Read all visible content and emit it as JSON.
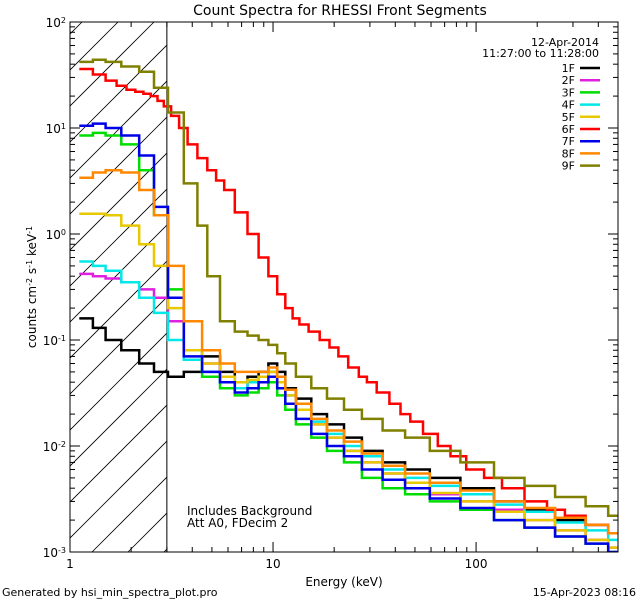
{
  "chart_data": {
    "type": "line",
    "title": "Count Spectra for RHESSI Front Segments",
    "xlabel": "Energy (keV)",
    "ylabel_main": "counts cm",
    "ylabel_sup1": "-2",
    "ylabel_mid": " s",
    "ylabel_sup2": "-1",
    "ylabel_end": " keV",
    "ylabel_sup3": "-1",
    "xscale": "log",
    "yscale": "log",
    "xlim": [
      1,
      500
    ],
    "ylim": [
      0.001,
      100
    ],
    "x_major_ticks": [
      1,
      10,
      100
    ],
    "x_tick_labels": [
      "1",
      "10",
      "100"
    ],
    "y_major_ticks": [
      0.001,
      0.01,
      0.1,
      1,
      10,
      100
    ],
    "y_tick_labels": [
      {
        "base": "10",
        "exp": "-3"
      },
      {
        "base": "10",
        "exp": "-2"
      },
      {
        "base": "10",
        "exp": "-1"
      },
      {
        "base": "10",
        "exp": "0"
      },
      {
        "base": "10",
        "exp": "1"
      },
      {
        "base": "10",
        "exp": "2"
      }
    ],
    "shaded_region": {
      "x_from": 1,
      "x_to": 3,
      "style": "diagonal-hatch"
    },
    "date": "12-Apr-2014",
    "time_range": "11:27:00 to 11:28:00",
    "annotations": [
      "Includes Background",
      "Att A0, FDecim 2"
    ],
    "legend_position": "top-right",
    "footer_left": "Generated by hsi_min_spectra_plot.pro",
    "footer_right": "15-Apr-2023 08:16",
    "series": [
      {
        "name": "1F",
        "color": "#000000",
        "x": [
          1.2,
          1.4,
          1.6,
          2.0,
          2.4,
          2.8,
          3.3,
          4.0,
          5,
          6,
          7,
          8,
          9,
          10,
          11,
          12,
          14,
          17,
          20,
          25,
          30,
          40,
          50,
          70,
          100,
          150,
          200,
          300,
          400,
          500
        ],
        "y": [
          0.16,
          0.13,
          0.1,
          0.08,
          0.06,
          0.05,
          0.045,
          0.05,
          0.07,
          0.05,
          0.04,
          0.045,
          0.05,
          0.06,
          0.05,
          0.035,
          0.028,
          0.02,
          0.016,
          0.012,
          0.009,
          0.007,
          0.006,
          0.005,
          0.004,
          0.003,
          0.0025,
          0.002,
          0.0018,
          0.0015
        ]
      },
      {
        "name": "2F",
        "color": "#e020e0",
        "x": [
          1.2,
          1.4,
          1.6,
          2.0,
          2.4,
          2.8,
          3.3,
          4.0,
          5,
          6,
          7,
          8,
          9,
          10,
          11,
          12,
          14,
          17,
          20,
          25,
          30,
          40,
          50,
          70,
          100,
          150,
          200,
          300,
          400,
          500
        ],
        "y": [
          0.42,
          0.4,
          0.38,
          0.35,
          0.3,
          0.25,
          0.15,
          0.08,
          0.06,
          0.045,
          0.035,
          0.04,
          0.045,
          0.05,
          0.04,
          0.03,
          0.022,
          0.016,
          0.012,
          0.009,
          0.007,
          0.0055,
          0.0045,
          0.0035,
          0.003,
          0.0025,
          0.002,
          0.0016,
          0.0013,
          0.0011
        ]
      },
      {
        "name": "3F",
        "color": "#00dd00",
        "x": [
          1.2,
          1.4,
          1.6,
          2.0,
          2.4,
          2.8,
          3.3,
          4.0,
          5,
          6,
          7,
          8,
          9,
          10,
          11,
          12,
          14,
          17,
          20,
          25,
          30,
          40,
          50,
          70,
          100,
          150,
          200,
          300,
          400,
          500
        ],
        "y": [
          8.5,
          9,
          8.5,
          7,
          4,
          1.5,
          0.3,
          0.08,
          0.045,
          0.035,
          0.03,
          0.032,
          0.035,
          0.04,
          0.03,
          0.022,
          0.016,
          0.012,
          0.009,
          0.007,
          0.005,
          0.004,
          0.0035,
          0.003,
          0.0025,
          0.002,
          0.0017,
          0.0014,
          0.0012,
          0.001
        ]
      },
      {
        "name": "4F",
        "color": "#00e8e8",
        "x": [
          1.2,
          1.4,
          1.6,
          2.0,
          2.4,
          2.8,
          3.3,
          4.0,
          5,
          6,
          7,
          8,
          9,
          10,
          11,
          12,
          14,
          17,
          20,
          25,
          30,
          40,
          50,
          70,
          100,
          150,
          200,
          300,
          400,
          500
        ],
        "y": [
          0.55,
          0.5,
          0.45,
          0.35,
          0.25,
          0.18,
          0.1,
          0.065,
          0.05,
          0.04,
          0.035,
          0.04,
          0.045,
          0.05,
          0.04,
          0.03,
          0.022,
          0.017,
          0.013,
          0.01,
          0.008,
          0.006,
          0.005,
          0.0042,
          0.0035,
          0.0028,
          0.0024,
          0.0019,
          0.0016,
          0.0013
        ]
      },
      {
        "name": "5F",
        "color": "#e8c800",
        "x": [
          1.2,
          1.4,
          1.6,
          2.0,
          2.4,
          2.8,
          3.3,
          4.0,
          5,
          6,
          7,
          8,
          9,
          10,
          11,
          12,
          14,
          17,
          20,
          25,
          30,
          40,
          50,
          70,
          100,
          150,
          200,
          300,
          400,
          500
        ],
        "y": [
          1.55,
          1.55,
          1.5,
          1.2,
          0.8,
          0.5,
          0.2,
          0.08,
          0.06,
          0.045,
          0.04,
          0.042,
          0.045,
          0.05,
          0.04,
          0.03,
          0.022,
          0.016,
          0.012,
          0.009,
          0.007,
          0.0055,
          0.0045,
          0.0036,
          0.003,
          0.0024,
          0.002,
          0.0016,
          0.0013,
          0.0011
        ]
      },
      {
        "name": "6F",
        "color": "#ff0000",
        "x": [
          1.2,
          1.4,
          1.6,
          1.8,
          2.0,
          2.2,
          2.4,
          2.6,
          2.8,
          3.0,
          3.3,
          3.6,
          4.0,
          4.5,
          5.0,
          5.5,
          6.0,
          7.0,
          8.0,
          9.0,
          10,
          11,
          12,
          13,
          14,
          16,
          18,
          20,
          22,
          25,
          28,
          30,
          35,
          40,
          45,
          50,
          60,
          70,
          80,
          100,
          120,
          150,
          200,
          250,
          300,
          400,
          500
        ],
        "y": [
          36,
          32,
          28,
          25,
          23,
          22,
          21,
          20,
          18,
          16,
          13,
          10,
          7,
          5.2,
          4,
          3.2,
          2.6,
          1.6,
          1.0,
          0.6,
          0.4,
          0.27,
          0.2,
          0.16,
          0.14,
          0.12,
          0.1,
          0.085,
          0.07,
          0.055,
          0.045,
          0.04,
          0.032,
          0.025,
          0.02,
          0.017,
          0.013,
          0.01,
          0.008,
          0.006,
          0.005,
          0.004,
          0.003,
          0.0025,
          0.0022,
          0.0018,
          0.0015
        ]
      },
      {
        "name": "7F",
        "color": "#0000e8",
        "x": [
          1.2,
          1.4,
          1.6,
          2.0,
          2.4,
          2.8,
          3.3,
          4.0,
          5,
          6,
          7,
          8,
          9,
          10,
          11,
          12,
          14,
          17,
          20,
          25,
          30,
          40,
          50,
          70,
          100,
          150,
          200,
          300,
          400,
          500
        ],
        "y": [
          10.5,
          11,
          10,
          8.5,
          5.5,
          1.8,
          0.25,
          0.07,
          0.05,
          0.04,
          0.032,
          0.035,
          0.04,
          0.045,
          0.035,
          0.025,
          0.018,
          0.013,
          0.01,
          0.008,
          0.006,
          0.0048,
          0.004,
          0.0032,
          0.0026,
          0.002,
          0.0017,
          0.0014,
          0.0012,
          0.001
        ]
      },
      {
        "name": "8F",
        "color": "#ff8800",
        "x": [
          1.2,
          1.4,
          1.6,
          2.0,
          2.4,
          2.8,
          3.3,
          4.0,
          5,
          6,
          7,
          8,
          9,
          10,
          11,
          12,
          14,
          17,
          20,
          25,
          30,
          40,
          50,
          70,
          100,
          150,
          200,
          300,
          400,
          500
        ],
        "y": [
          3.4,
          3.8,
          4,
          3.8,
          2.6,
          1.5,
          0.5,
          0.15,
          0.08,
          0.06,
          0.05,
          0.05,
          0.05,
          0.055,
          0.045,
          0.034,
          0.025,
          0.018,
          0.014,
          0.011,
          0.0085,
          0.0065,
          0.0055,
          0.0045,
          0.0038,
          0.003,
          0.0026,
          0.0021,
          0.0018,
          0.0015
        ]
      },
      {
        "name": "9F",
        "color": "#808000",
        "x": [
          1.2,
          1.4,
          1.6,
          2.0,
          2.4,
          2.8,
          3.3,
          4.0,
          4.5,
          5,
          6,
          7,
          8,
          9,
          10,
          11,
          12,
          14,
          17,
          20,
          25,
          30,
          40,
          50,
          70,
          100,
          150,
          200,
          300,
          400,
          500
        ],
        "y": [
          42,
          44,
          42,
          38,
          34,
          24,
          14,
          3,
          1.2,
          0.4,
          0.15,
          0.12,
          0.11,
          0.1,
          0.09,
          0.075,
          0.06,
          0.045,
          0.035,
          0.028,
          0.022,
          0.018,
          0.014,
          0.012,
          0.009,
          0.007,
          0.005,
          0.0042,
          0.0033,
          0.0027,
          0.0022
        ]
      }
    ]
  }
}
